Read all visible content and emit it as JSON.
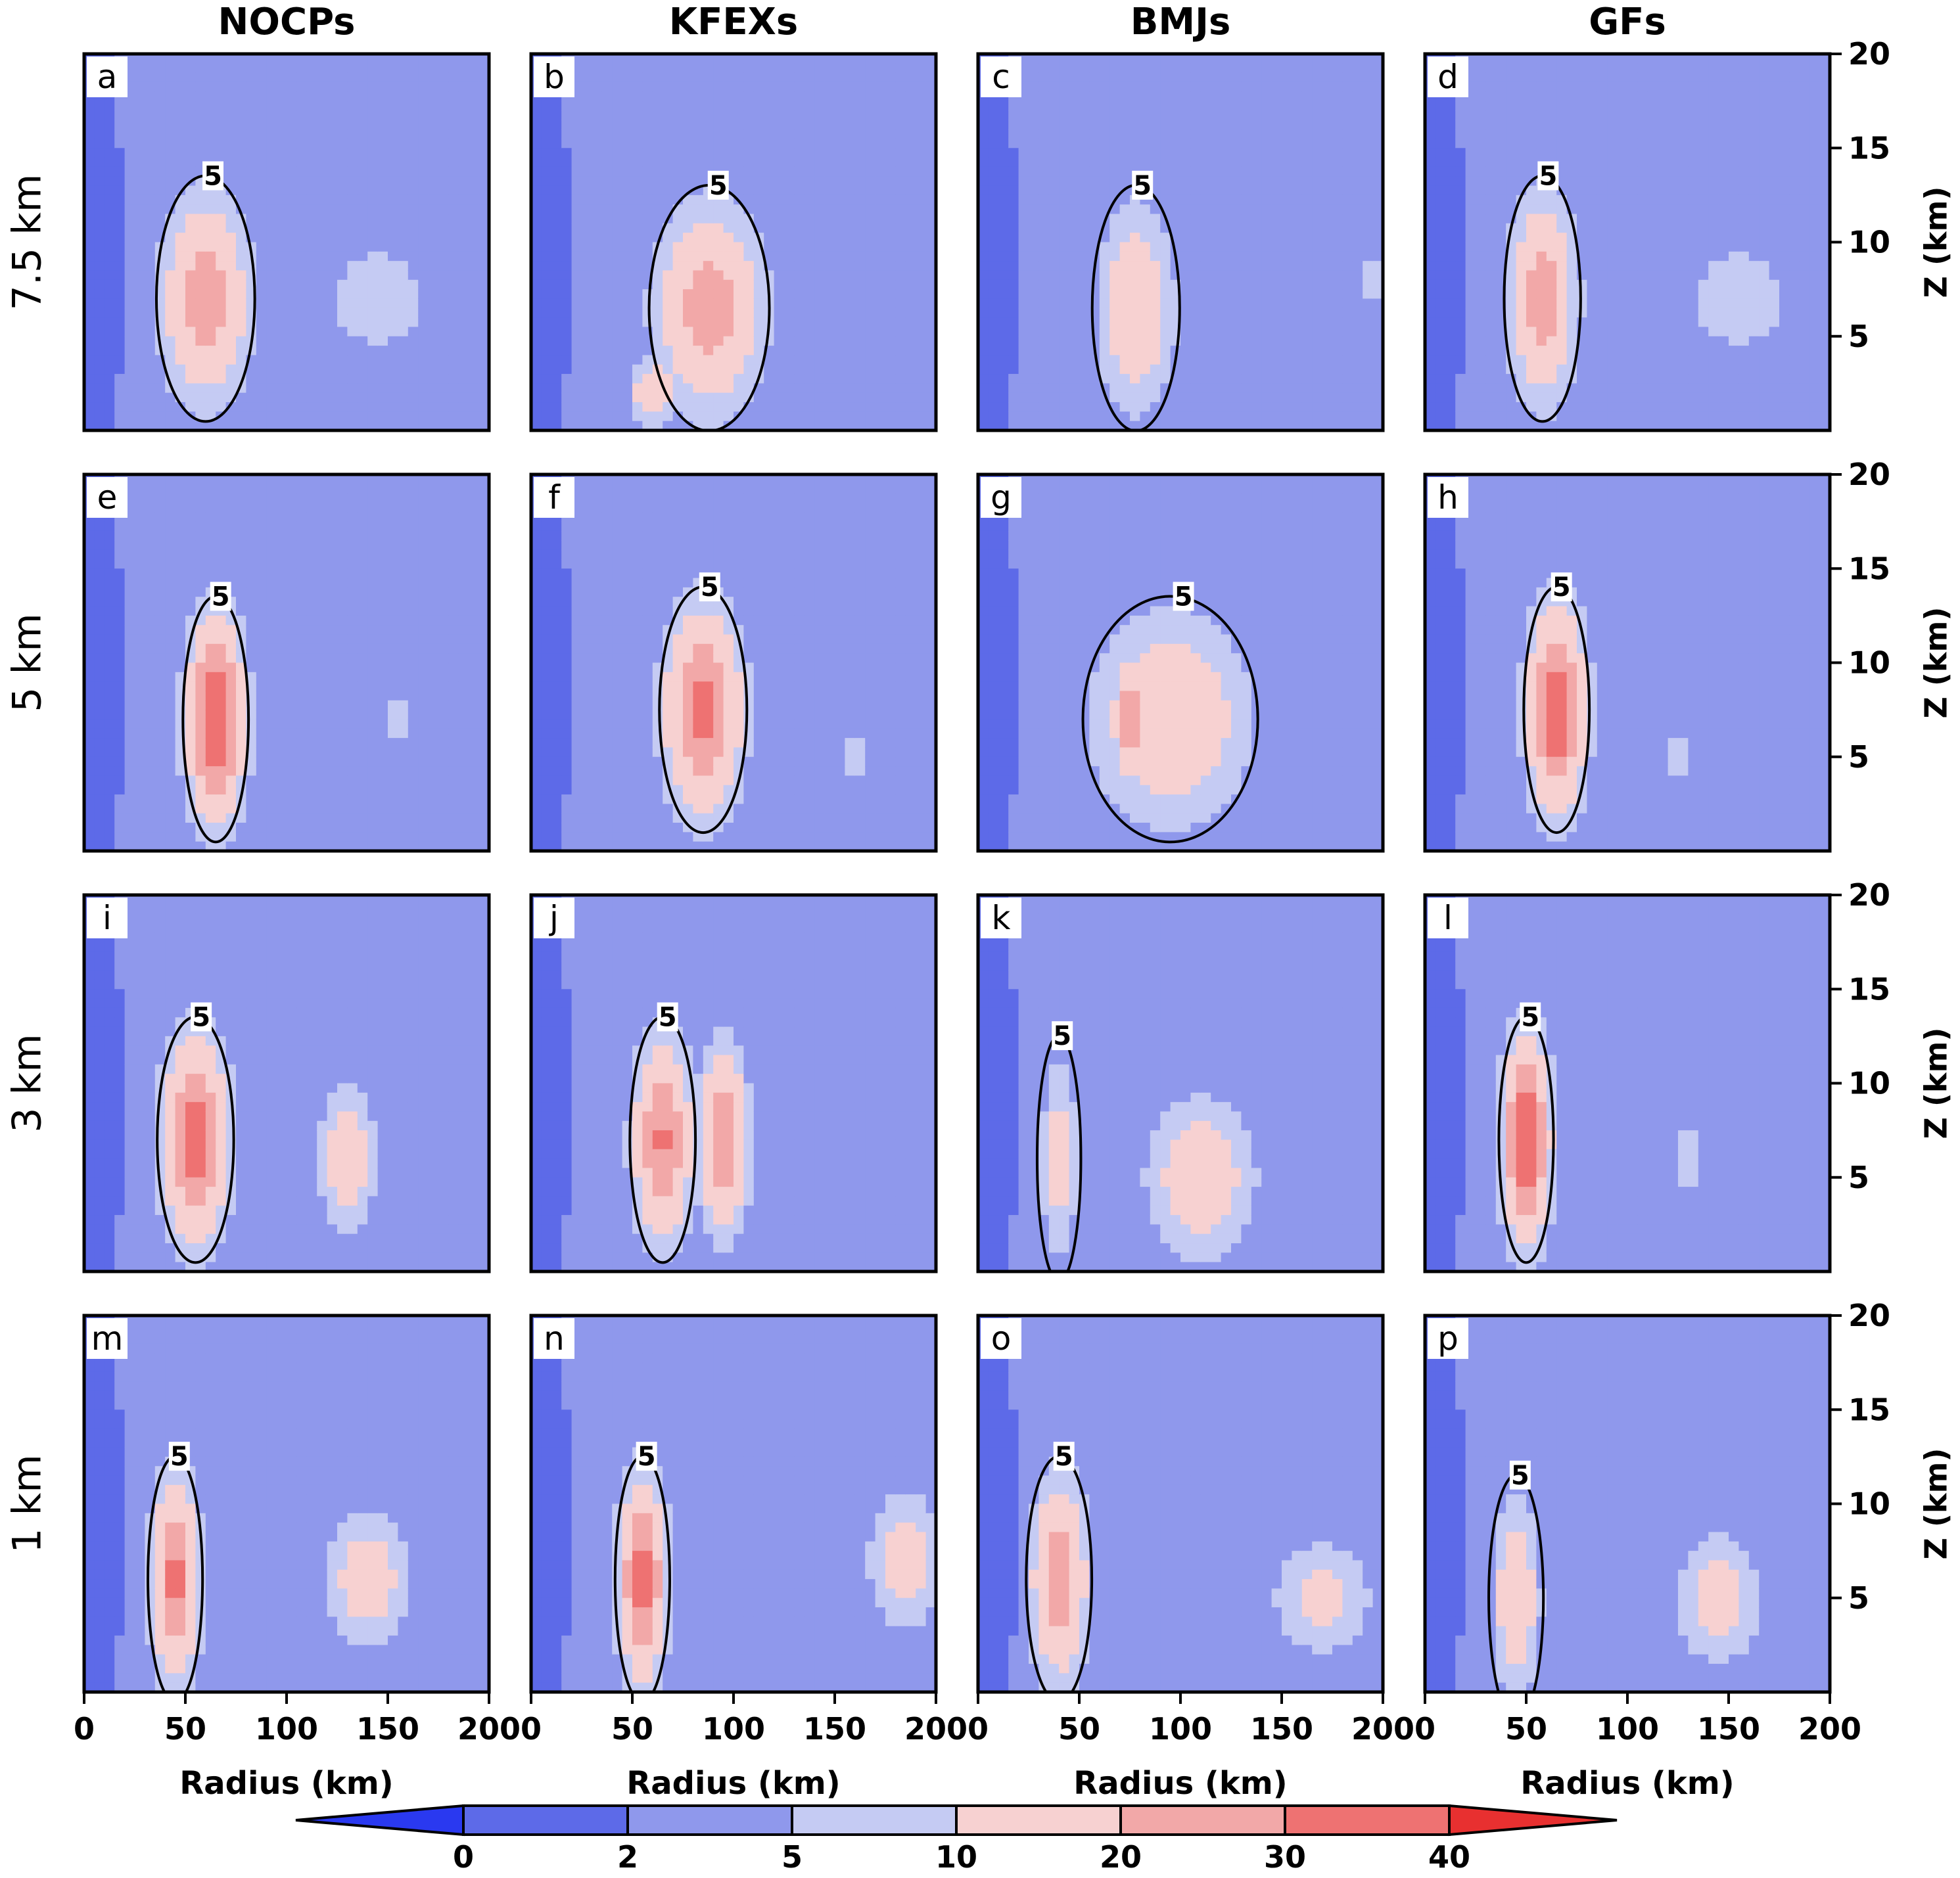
{
  "chart_data": {
    "type": "heatmap",
    "description_units": "filled contours of a radius-height field with a black 5-level contour",
    "columns": [
      "NOCPs",
      "KFEXs",
      "BMJs",
      "GFs"
    ],
    "rows": [
      "7.5  km",
      "5  km",
      "3  km",
      "1  km"
    ],
    "panel_labels": [
      "a",
      "b",
      "c",
      "d",
      "e",
      "f",
      "g",
      "h",
      "i",
      "j",
      "k",
      "l",
      "m",
      "n",
      "o",
      "p"
    ],
    "xlabel": "Radius  (km)",
    "ylabel": "Z  (km)",
    "xlim": [
      0,
      200
    ],
    "ylim": [
      0,
      20
    ],
    "xticks": [
      "0",
      "50",
      "100",
      "150",
      "200"
    ],
    "yticks": [
      "5",
      "10",
      "15",
      "20"
    ],
    "xtick_values": [
      0,
      50,
      100,
      150,
      200
    ],
    "ytick_values": [
      5,
      10,
      15,
      20
    ],
    "contour_level": 5,
    "contour_label": "5",
    "colorbar": {
      "levels": [
        "0",
        "2",
        "5",
        "10",
        "20",
        "30",
        "40"
      ],
      "level_values": [
        0,
        2,
        5,
        10,
        20,
        30,
        40
      ],
      "colors": [
        "#2a39f0",
        "#5d6ae8",
        "#8f98ec",
        "#c5cbf3",
        "#f7d1d1",
        "#f2a8a8",
        "#ee7272",
        "#e83030"
      ]
    },
    "cores": [
      [
        {
          "r": 60,
          "z": 7,
          "v": 25,
          "wr": 18,
          "wz": 4.5
        },
        {
          "r": 145,
          "z": 7,
          "v": 8,
          "wr": 22,
          "wz": 2.5
        }
      ],
      [
        {
          "r": 88,
          "z": 6.5,
          "v": 24,
          "wr": 22,
          "wz": 4.5
        },
        {
          "r": 60,
          "z": 2,
          "v": 15,
          "wr": 10,
          "wz": 1.5
        }
      ],
      [
        {
          "r": 78,
          "z": 6.5,
          "v": 17,
          "wr": 16,
          "wz": 4.5
        },
        {
          "r": 195,
          "z": 8,
          "v": 6,
          "wr": 6,
          "wz": 1.5
        }
      ],
      [
        {
          "r": 58,
          "z": 7,
          "v": 24,
          "wr": 14,
          "wz": 4.5
        },
        {
          "r": 155,
          "z": 7,
          "v": 8,
          "wr": 22,
          "wz": 2.5
        }
      ],
      [
        {
          "r": 65,
          "z": 7,
          "v": 40,
          "wr": 12,
          "wz": 4.5
        },
        {
          "r": 155,
          "z": 7,
          "v": 6,
          "wr": 8,
          "wz": 1.5
        }
      ],
      [
        {
          "r": 85,
          "z": 7.5,
          "v": 33,
          "wr": 16,
          "wz": 4.5
        },
        {
          "r": 160,
          "z": 5,
          "v": 6,
          "wr": 6,
          "wz": 1.5
        }
      ],
      [
        {
          "r": 95,
          "z": 7,
          "v": 18,
          "wr": 32,
          "wz": 4.5
        },
        {
          "r": 75,
          "z": 7,
          "v": 22,
          "wr": 6,
          "wz": 2.5
        }
      ],
      [
        {
          "r": 65,
          "z": 7.5,
          "v": 38,
          "wr": 12,
          "wz": 4.5
        },
        {
          "r": 125,
          "z": 5,
          "v": 6,
          "wr": 5,
          "wz": 1.5
        }
      ],
      [
        {
          "r": 55,
          "z": 7,
          "v": 35,
          "wr": 14,
          "wz": 4.5
        },
        {
          "r": 130,
          "z": 6,
          "v": 14,
          "wr": 12,
          "wz": 3.5
        }
      ],
      [
        {
          "r": 65,
          "z": 7,
          "v": 30,
          "wr": 12,
          "wz": 4.5
        },
        {
          "r": 95,
          "z": 7,
          "v": 30,
          "wr": 10,
          "wz": 4
        }
      ],
      [
        {
          "r": 40,
          "z": 6,
          "v": 12,
          "wr": 8,
          "wz": 4.5
        },
        {
          "r": 110,
          "z": 5,
          "v": 16,
          "wr": 22,
          "wz": 3.5
        }
      ],
      [
        {
          "r": 50,
          "z": 7,
          "v": 40,
          "wr": 10,
          "wz": 4.5
        },
        {
          "r": 130,
          "z": 6,
          "v": 6,
          "wr": 8,
          "wz": 2
        }
      ],
      [
        {
          "r": 45,
          "z": 6,
          "v": 32,
          "wr": 10,
          "wz": 4.5
        },
        {
          "r": 140,
          "z": 6,
          "v": 14,
          "wr": 18,
          "wz": 3
        }
      ],
      [
        {
          "r": 55,
          "z": 6,
          "v": 34,
          "wr": 10,
          "wz": 4.5
        },
        {
          "r": 185,
          "z": 7,
          "v": 14,
          "wr": 15,
          "wz": 3
        }
      ],
      [
        {
          "r": 40,
          "z": 6,
          "v": 26,
          "wr": 12,
          "wz": 4.5
        },
        {
          "r": 170,
          "z": 5,
          "v": 12,
          "wr": 20,
          "wz": 2.5
        }
      ],
      [
        {
          "r": 45,
          "z": 5,
          "v": 16,
          "wr": 10,
          "wz": 4.5
        },
        {
          "r": 145,
          "z": 5,
          "v": 12,
          "wr": 18,
          "wz": 3
        }
      ]
    ]
  }
}
